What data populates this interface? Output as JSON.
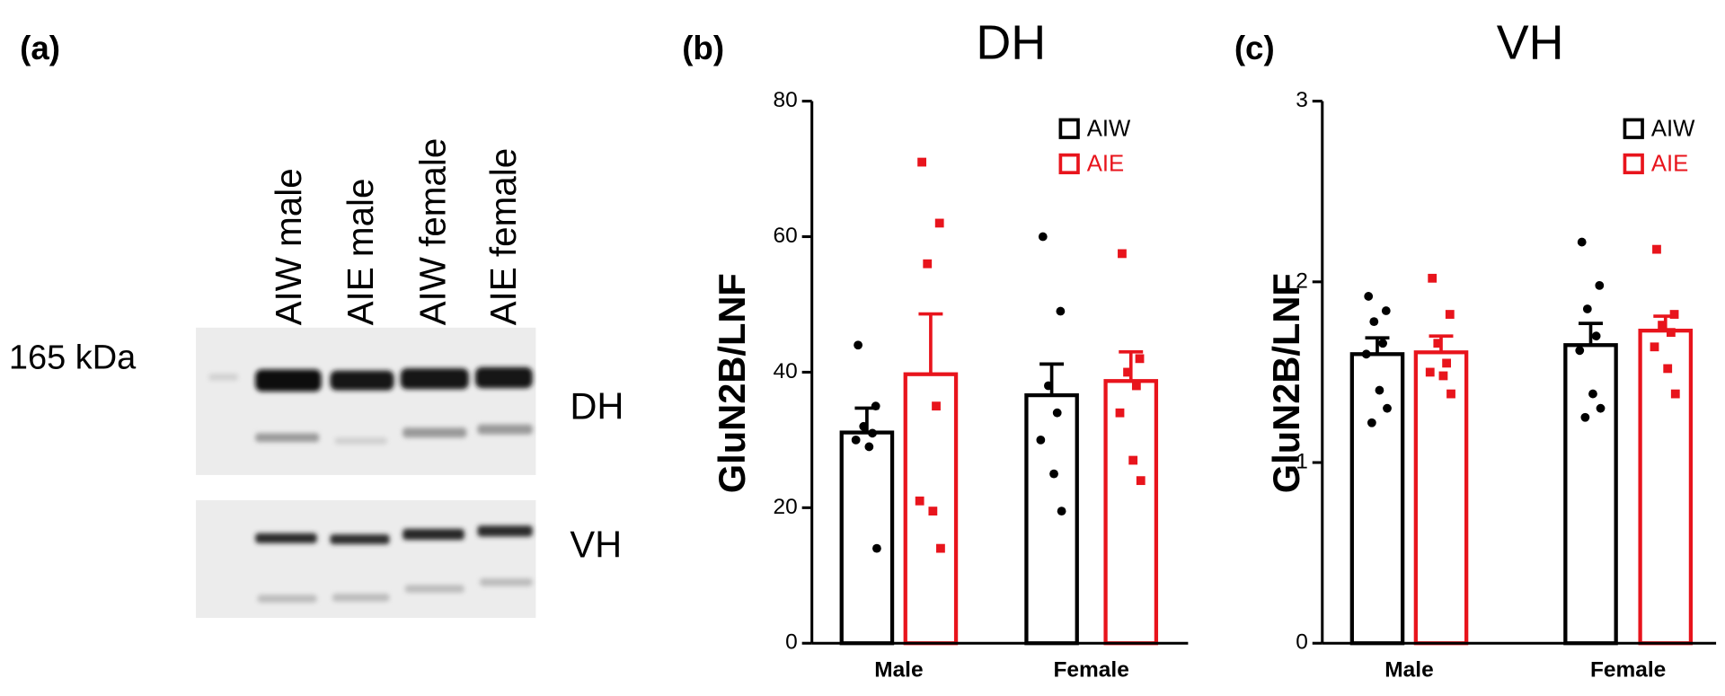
{
  "blot": {
    "panel_label": "(a)",
    "lanes": [
      "AIW male",
      "AIE male",
      "AIW female",
      "AIE female"
    ],
    "marker": "165 kDa",
    "rows": [
      "DH",
      "VH"
    ]
  },
  "chart_data": [
    {
      "type": "bar",
      "panel_label": "(b)",
      "title": "DH",
      "y_label": "GluN2B/LNF",
      "categories": [
        "Male",
        "Female"
      ],
      "series": [
        {
          "name": "AIW",
          "color": "#000000",
          "values": [
            31.1,
            36.6
          ],
          "errors": [
            3.6,
            4.6
          ],
          "points": [
            [
              44,
              35,
              32,
              31,
              30,
              29,
              14
            ],
            [
              60,
              49,
              38,
              34,
              30,
              25,
              19.5
            ]
          ]
        },
        {
          "name": "AIE",
          "color": "#e8141c",
          "values": [
            39.7,
            38.7
          ],
          "errors": [
            8.9,
            4.3
          ],
          "points": [
            [
              71,
              62,
              56,
              35,
              21,
              19.5,
              14
            ],
            [
              57.5,
              42,
              40,
              38,
              34,
              27,
              24
            ]
          ]
        }
      ],
      "ylim": [
        0,
        80
      ],
      "yticks": [
        0,
        20,
        40,
        60,
        80
      ],
      "legend": "upper right"
    },
    {
      "type": "bar",
      "panel_label": "(c)",
      "title": "VH",
      "y_label": "GluN2B/LNF",
      "categories": [
        "Male",
        "Female"
      ],
      "series": [
        {
          "name": "AIW",
          "color": "#000000",
          "values": [
            1.6,
            1.65
          ],
          "errors": [
            0.09,
            0.12
          ],
          "points": [
            [
              1.92,
              1.84,
              1.78,
              1.66,
              1.6,
              1.4,
              1.3,
              1.22
            ],
            [
              2.22,
              1.98,
              1.85,
              1.7,
              1.62,
              1.38,
              1.3,
              1.25
            ]
          ]
        },
        {
          "name": "AIE",
          "color": "#e8141c",
          "values": [
            1.61,
            1.73
          ],
          "errors": [
            0.09,
            0.08
          ],
          "points": [
            [
              2.02,
              1.82,
              1.66,
              1.55,
              1.5,
              1.48,
              1.38
            ],
            [
              2.18,
              1.82,
              1.76,
              1.72,
              1.64,
              1.52,
              1.38
            ]
          ]
        }
      ],
      "ylim": [
        0,
        3
      ],
      "yticks": [
        0,
        1,
        2,
        3
      ],
      "legend": "upper right"
    }
  ]
}
